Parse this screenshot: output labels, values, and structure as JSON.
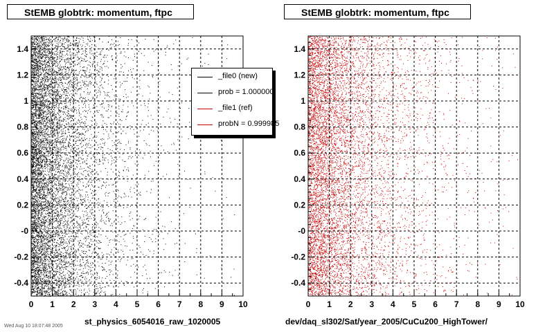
{
  "colors": {
    "new": "#000000",
    "ref": "#cc0000",
    "grid": "#000000"
  },
  "panels": [
    {
      "title": "StEMB globtrk: momentum, ftpc",
      "footer": "st_physics_6054016_raw_1020005"
    },
    {
      "title": "StEMB globtrk: momentum, ftpc",
      "footer": "dev/daq_sl302/Sat/year_2005/CuCu200_HighTower/"
    }
  ],
  "legend": [
    {
      "label": "_file0 (new)",
      "color": "#000000"
    },
    {
      "label": "prob = 1.000000",
      "color": "#000000"
    },
    {
      "label": "_file1 (ref)",
      "color": "#cc0000"
    },
    {
      "label": "probN = 0.999985",
      "color": "#cc0000"
    }
  ],
  "stamp": "Wed Aug 10 18:07:48 2005",
  "chart_data": [
    {
      "type": "scatter",
      "title": "StEMB globtrk: momentum, ftpc",
      "xlabel": "st_physics_6054016_raw_1020005",
      "ylabel": "",
      "xlim": [
        0,
        10
      ],
      "ylim": [
        -0.5,
        1.5
      ],
      "xticks": [
        "0",
        "1",
        "2",
        "3",
        "4",
        "5",
        "6",
        "7",
        "8",
        "9",
        "10"
      ],
      "yticks": [
        "-0.4",
        "-0.2",
        "-0",
        "0.2",
        "0.4",
        "0.6",
        "0.8",
        "1",
        "1.2",
        "1.4"
      ],
      "grid": true,
      "legend_position": "top-right",
      "series": [
        {
          "name": "_file0 (new)",
          "color": "#000000",
          "density_x_decay": 1.4,
          "points": 9000
        }
      ]
    },
    {
      "type": "scatter",
      "title": "StEMB globtrk: momentum, ftpc",
      "xlabel": "dev/daq_sl302/Sat/year_2005/CuCu200_HighTower/",
      "ylabel": "",
      "xlim": [
        0,
        10
      ],
      "ylim": [
        -0.5,
        1.5
      ],
      "xticks": [
        "0",
        "1",
        "2",
        "3",
        "4",
        "5",
        "6",
        "7",
        "8",
        "9",
        "10"
      ],
      "yticks": [
        "-0.4",
        "-0.2",
        "-0",
        "0.2",
        "0.4",
        "0.6",
        "0.8",
        "1",
        "1.2",
        "1.4"
      ],
      "grid": true,
      "series": [
        {
          "name": "_file1 (ref)",
          "color": "#cc0000",
          "density_x_decay": 1.8,
          "points": 8000
        }
      ]
    }
  ]
}
